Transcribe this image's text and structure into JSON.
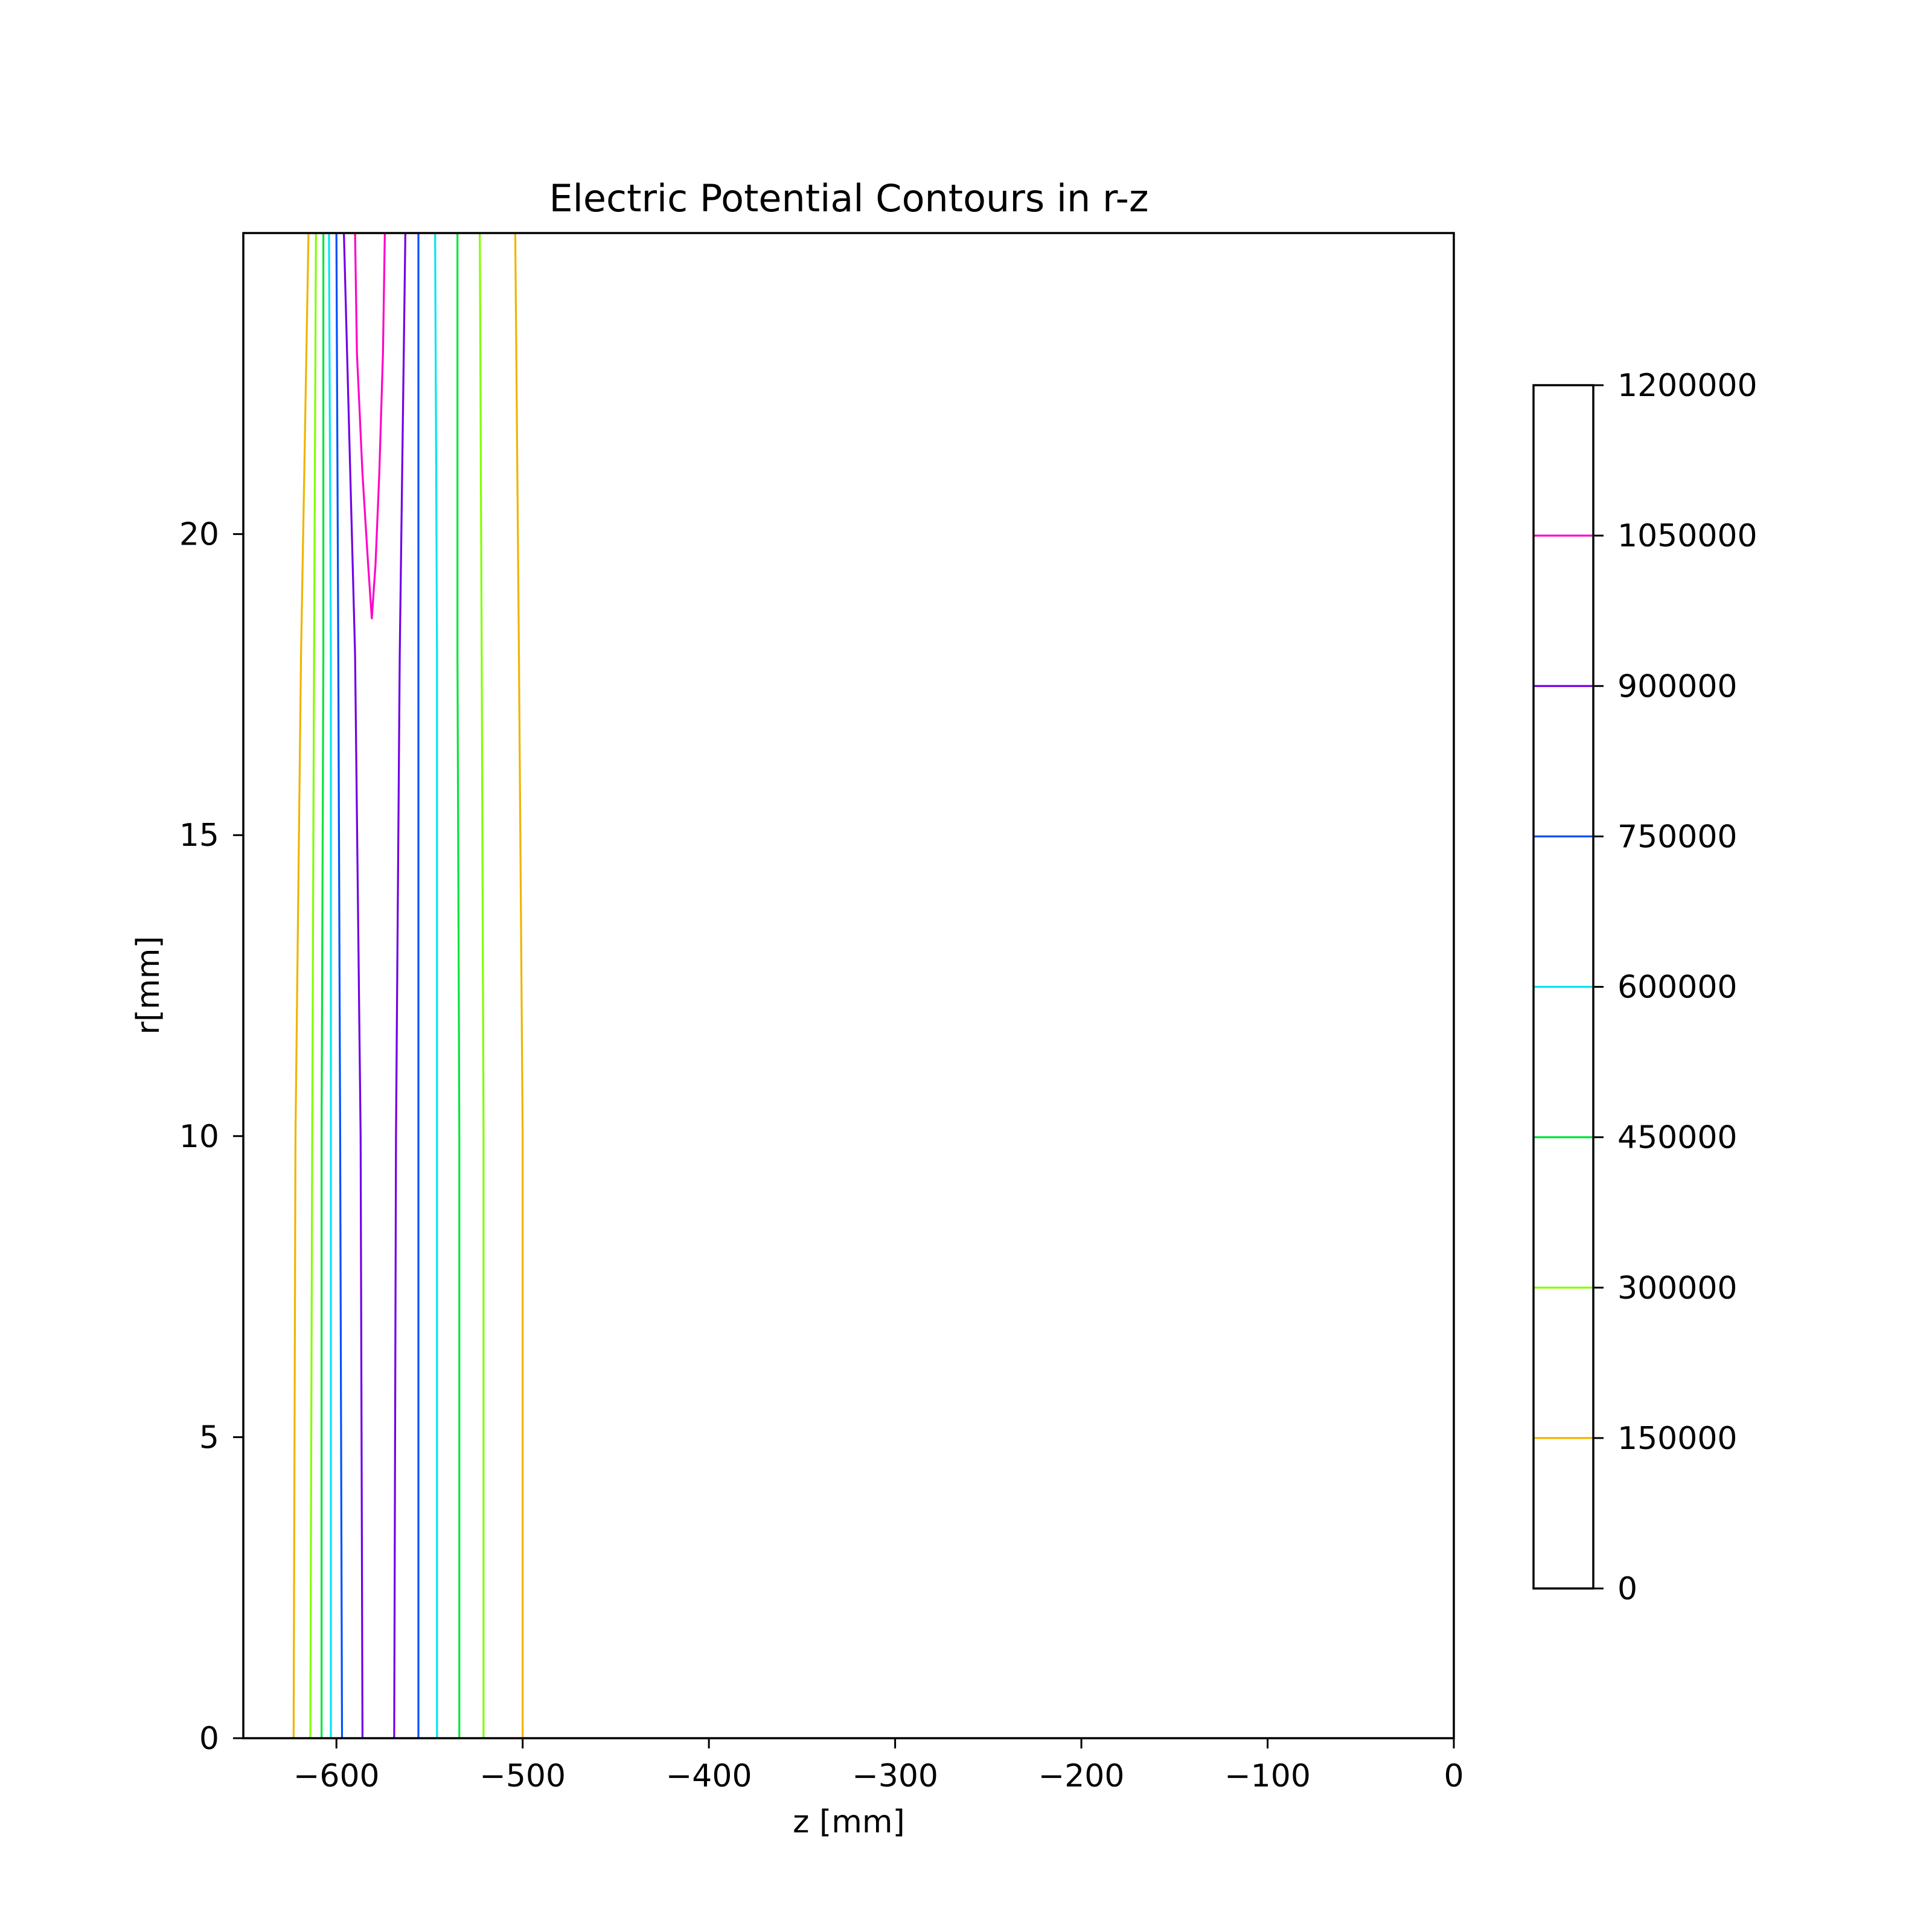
{
  "chart_data": {
    "type": "contour",
    "title": "Electric Potential Contours in r-z",
    "xlabel": "z [mm]",
    "ylabel": "r[mm]",
    "xlim": [
      -650,
      0
    ],
    "ylim": [
      0,
      25
    ],
    "x_ticks": [
      {
        "value": -600,
        "label": "−600"
      },
      {
        "value": -500,
        "label": "−500"
      },
      {
        "value": -400,
        "label": "−400"
      },
      {
        "value": -300,
        "label": "−300"
      },
      {
        "value": -200,
        "label": "−200"
      },
      {
        "value": -100,
        "label": "−100"
      },
      {
        "value": 0,
        "label": "0"
      }
    ],
    "y_ticks": [
      {
        "value": 0,
        "label": "0"
      },
      {
        "value": 5,
        "label": "5"
      },
      {
        "value": 10,
        "label": "10"
      },
      {
        "value": 15,
        "label": "15"
      },
      {
        "value": 20,
        "label": "20"
      }
    ],
    "grid": false,
    "colorbar": {
      "range": [
        0,
        1200000
      ],
      "ticks": [
        {
          "value": 0,
          "label": "0"
        },
        {
          "value": 150000,
          "label": "150000"
        },
        {
          "value": 300000,
          "label": "300000"
        },
        {
          "value": 450000,
          "label": "450000"
        },
        {
          "value": 600000,
          "label": "600000"
        },
        {
          "value": 750000,
          "label": "750000"
        },
        {
          "value": 900000,
          "label": "900000"
        },
        {
          "value": 1050000,
          "label": "1050000"
        },
        {
          "value": 1200000,
          "label": "1200000"
        }
      ]
    },
    "levels": [
      {
        "value": 150000,
        "color": "#f0b400",
        "contours": [
          [
            [
              -623,
              0
            ],
            [
              -622,
              10
            ],
            [
              -619,
              18
            ],
            [
              -615,
              25
            ]
          ],
          [
            [
              -500,
              0
            ],
            [
              -500,
              10
            ],
            [
              -502,
              18
            ],
            [
              -504,
              25
            ]
          ]
        ]
      },
      {
        "value": 300000,
        "color": "#80ff00",
        "contours": [
          [
            [
              -614,
              0
            ],
            [
              -613,
              10
            ],
            [
              -612,
              18
            ],
            [
              -611,
              25
            ]
          ],
          [
            [
              -521,
              0
            ],
            [
              -521,
              10
            ],
            [
              -522,
              18
            ],
            [
              -523,
              25
            ]
          ]
        ]
      },
      {
        "value": 450000,
        "color": "#00e639",
        "contours": [
          [
            [
              -608,
              0
            ],
            [
              -608,
              10
            ],
            [
              -607,
              18
            ],
            [
              -607,
              25
            ]
          ],
          [
            [
              -534,
              0
            ],
            [
              -534,
              10
            ],
            [
              -535,
              18
            ],
            [
              -535,
              25
            ]
          ]
        ]
      },
      {
        "value": 600000,
        "color": "#00e6f0",
        "contours": [
          [
            [
              -603,
              0
            ],
            [
              -603,
              10
            ],
            [
              -603,
              18
            ],
            [
              -604,
              25
            ]
          ],
          [
            [
              -546,
              0
            ],
            [
              -546,
              10
            ],
            [
              -546,
              18
            ],
            [
              -547,
              25
            ]
          ]
        ]
      },
      {
        "value": 750000,
        "color": "#0050ff",
        "contours": [
          [
            [
              -597,
              0
            ],
            [
              -598,
              10
            ],
            [
              -599,
              18
            ],
            [
              -600,
              25
            ]
          ],
          [
            [
              -556,
              0
            ],
            [
              -556,
              10
            ],
            [
              -556,
              18
            ],
            [
              -556,
              25
            ]
          ]
        ]
      },
      {
        "value": 900000,
        "color": "#7000e6",
        "contours": [
          [
            [
              -586,
              0
            ],
            [
              -587,
              10
            ],
            [
              -590,
              18
            ],
            [
              -596,
              25
            ]
          ],
          [
            [
              -569,
              0
            ],
            [
              -568,
              10
            ],
            [
              -566,
              18
            ],
            [
              -563,
              25
            ]
          ]
        ]
      },
      {
        "value": 1050000,
        "color": "#ff00c8",
        "contours": [
          [
            [
              -590,
              25
            ],
            [
              -589,
              23
            ],
            [
              -586,
              21
            ],
            [
              -583,
              19.5
            ],
            [
              -581,
              18.6
            ],
            [
              -579,
              19.5
            ],
            [
              -577,
              21
            ],
            [
              -575,
              23
            ],
            [
              -574,
              25
            ]
          ]
        ]
      }
    ]
  }
}
